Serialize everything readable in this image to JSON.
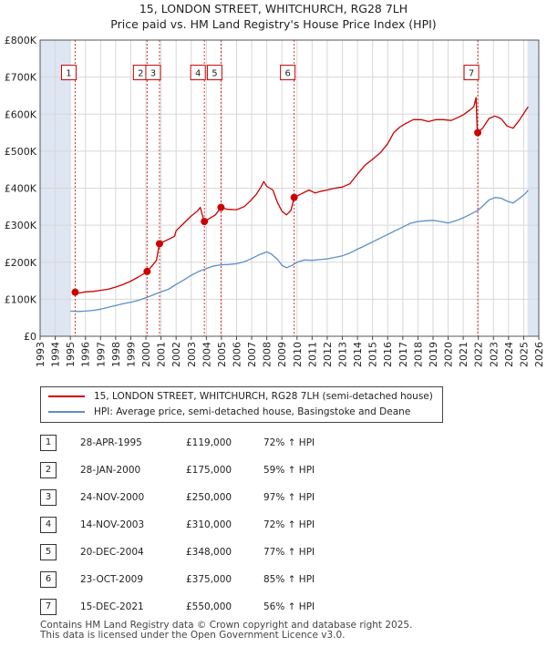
{
  "header": {
    "title": "15, LONDON STREET, WHITCHURCH, RG28 7LH",
    "subtitle": "Price paid vs. HM Land Registry's House Price Index (HPI)"
  },
  "colors": {
    "property": "#cc0000",
    "hpi": "#5b8fc9",
    "shade": "#dde6f2",
    "grid": "#d8d8d8",
    "vline": "#cc0000"
  },
  "chart_data": {
    "type": "line",
    "title": "15, LONDON STREET, WHITCHURCH, RG28 7LH",
    "subtitle": "Price paid vs. HM Land Registry's House Price Index (HPI)",
    "xlabel": "",
    "ylabel": "",
    "xlim": [
      1993,
      2026
    ],
    "ylim": [
      0,
      800000
    ],
    "x_ticks": [
      1993,
      1994,
      1995,
      1996,
      1997,
      1998,
      1999,
      2000,
      2001,
      2002,
      2003,
      2004,
      2005,
      2006,
      2007,
      2008,
      2009,
      2010,
      2011,
      2012,
      2013,
      2014,
      2015,
      2016,
      2017,
      2018,
      2019,
      2020,
      2021,
      2022,
      2023,
      2024,
      2025,
      2026
    ],
    "y_ticks": [
      {
        "value": 0,
        "label": "£0"
      },
      {
        "value": 100000,
        "label": "£100K"
      },
      {
        "value": 200000,
        "label": "£200K"
      },
      {
        "value": 300000,
        "label": "£300K"
      },
      {
        "value": 400000,
        "label": "£400K"
      },
      {
        "value": 500000,
        "label": "£500K"
      },
      {
        "value": 600000,
        "label": "£600K"
      },
      {
        "value": 700000,
        "label": "£700K"
      },
      {
        "value": 800000,
        "label": "£800K"
      }
    ],
    "shaded_ranges": [
      [
        1993,
        1995.0
      ],
      [
        2025.25,
        2026
      ]
    ],
    "series": [
      {
        "name": "15, LONDON STREET, WHITCHURCH, RG28 7LH (semi-detached house)",
        "color": "#cc0000",
        "points": [
          [
            1995.32,
            119000
          ],
          [
            1995.6,
            117000
          ],
          [
            1996.0,
            120000
          ],
          [
            1996.5,
            121000
          ],
          [
            1997.0,
            124000
          ],
          [
            1997.5,
            127000
          ],
          [
            1998.0,
            133000
          ],
          [
            1998.5,
            140000
          ],
          [
            1999.0,
            149000
          ],
          [
            1999.5,
            160000
          ],
          [
            2000.0,
            172000
          ],
          [
            2000.08,
            175000
          ],
          [
            2000.4,
            190000
          ],
          [
            2000.7,
            205000
          ],
          [
            2000.9,
            250000
          ],
          [
            2001.0,
            252000
          ],
          [
            2001.5,
            262000
          ],
          [
            2001.9,
            270000
          ],
          [
            2002.0,
            285000
          ],
          [
            2002.5,
            305000
          ],
          [
            2003.0,
            325000
          ],
          [
            2003.4,
            338000
          ],
          [
            2003.6,
            348000
          ],
          [
            2003.8,
            318000
          ],
          [
            2003.87,
            310000
          ],
          [
            2004.2,
            318000
          ],
          [
            2004.6,
            328000
          ],
          [
            2004.97,
            348000
          ],
          [
            2005.4,
            343000
          ],
          [
            2006.0,
            342000
          ],
          [
            2006.5,
            350000
          ],
          [
            2006.9,
            365000
          ],
          [
            2007.3,
            383000
          ],
          [
            2007.6,
            402000
          ],
          [
            2007.8,
            418000
          ],
          [
            2008.0,
            405000
          ],
          [
            2008.4,
            395000
          ],
          [
            2008.7,
            362000
          ],
          [
            2009.0,
            338000
          ],
          [
            2009.3,
            328000
          ],
          [
            2009.6,
            340000
          ],
          [
            2009.81,
            375000
          ],
          [
            2010.3,
            385000
          ],
          [
            2010.8,
            395000
          ],
          [
            2011.2,
            387000
          ],
          [
            2011.6,
            392000
          ],
          [
            2012.0,
            395000
          ],
          [
            2012.5,
            400000
          ],
          [
            2013.0,
            403000
          ],
          [
            2013.5,
            412000
          ],
          [
            2014.0,
            438000
          ],
          [
            2014.5,
            462000
          ],
          [
            2015.0,
            478000
          ],
          [
            2015.5,
            495000
          ],
          [
            2016.0,
            520000
          ],
          [
            2016.4,
            550000
          ],
          [
            2016.8,
            565000
          ],
          [
            2017.2,
            575000
          ],
          [
            2017.7,
            585000
          ],
          [
            2018.2,
            585000
          ],
          [
            2018.7,
            580000
          ],
          [
            2019.2,
            585000
          ],
          [
            2019.7,
            585000
          ],
          [
            2020.2,
            583000
          ],
          [
            2020.6,
            590000
          ],
          [
            2021.0,
            598000
          ],
          [
            2021.4,
            610000
          ],
          [
            2021.7,
            620000
          ],
          [
            2021.85,
            645000
          ],
          [
            2021.92,
            560000
          ],
          [
            2021.96,
            550000
          ],
          [
            2022.3,
            563000
          ],
          [
            2022.7,
            588000
          ],
          [
            2023.1,
            595000
          ],
          [
            2023.5,
            588000
          ],
          [
            2023.9,
            568000
          ],
          [
            2024.3,
            562000
          ],
          [
            2024.7,
            583000
          ],
          [
            2025.1,
            608000
          ],
          [
            2025.3,
            620000
          ]
        ]
      },
      {
        "name": "HPI: Average price, semi-detached house, Basingstoke and Deane",
        "color": "#5b8fc9",
        "points": [
          [
            1995.0,
            68000
          ],
          [
            1995.5,
            67000
          ],
          [
            1996.0,
            68000
          ],
          [
            1996.5,
            70000
          ],
          [
            1997.0,
            73000
          ],
          [
            1997.5,
            78000
          ],
          [
            1998.0,
            83000
          ],
          [
            1998.5,
            88000
          ],
          [
            1999.0,
            92000
          ],
          [
            1999.5,
            97000
          ],
          [
            2000.0,
            104000
          ],
          [
            2000.5,
            112000
          ],
          [
            2001.0,
            120000
          ],
          [
            2001.5,
            127000
          ],
          [
            2002.0,
            140000
          ],
          [
            2002.5,
            152000
          ],
          [
            2003.0,
            165000
          ],
          [
            2003.5,
            175000
          ],
          [
            2004.0,
            183000
          ],
          [
            2004.5,
            190000
          ],
          [
            2005.0,
            193000
          ],
          [
            2005.5,
            194000
          ],
          [
            2006.0,
            196000
          ],
          [
            2006.5,
            201000
          ],
          [
            2007.0,
            210000
          ],
          [
            2007.5,
            220000
          ],
          [
            2008.0,
            228000
          ],
          [
            2008.3,
            222000
          ],
          [
            2008.7,
            208000
          ],
          [
            2009.0,
            192000
          ],
          [
            2009.3,
            185000
          ],
          [
            2009.7,
            192000
          ],
          [
            2010.0,
            200000
          ],
          [
            2010.5,
            206000
          ],
          [
            2011.0,
            205000
          ],
          [
            2011.5,
            207000
          ],
          [
            2012.0,
            209000
          ],
          [
            2012.5,
            213000
          ],
          [
            2013.0,
            217000
          ],
          [
            2013.5,
            225000
          ],
          [
            2014.0,
            235000
          ],
          [
            2014.5,
            245000
          ],
          [
            2015.0,
            255000
          ],
          [
            2015.5,
            265000
          ],
          [
            2016.0,
            275000
          ],
          [
            2016.5,
            285000
          ],
          [
            2017.0,
            295000
          ],
          [
            2017.5,
            305000
          ],
          [
            2018.0,
            310000
          ],
          [
            2018.5,
            312000
          ],
          [
            2019.0,
            313000
          ],
          [
            2019.5,
            310000
          ],
          [
            2020.0,
            306000
          ],
          [
            2020.5,
            312000
          ],
          [
            2021.0,
            320000
          ],
          [
            2021.5,
            330000
          ],
          [
            2021.96,
            340000
          ],
          [
            2022.3,
            352000
          ],
          [
            2022.7,
            368000
          ],
          [
            2023.1,
            375000
          ],
          [
            2023.5,
            373000
          ],
          [
            2023.9,
            365000
          ],
          [
            2024.3,
            360000
          ],
          [
            2024.7,
            372000
          ],
          [
            2025.1,
            385000
          ],
          [
            2025.3,
            395000
          ]
        ]
      }
    ],
    "sales": [
      {
        "n": "1",
        "x": 1995.32,
        "y": 119000
      },
      {
        "n": "2",
        "x": 2000.08,
        "y": 175000
      },
      {
        "n": "3",
        "x": 2000.9,
        "y": 250000
      },
      {
        "n": "4",
        "x": 2003.87,
        "y": 310000
      },
      {
        "n": "5",
        "x": 2004.97,
        "y": 348000
      },
      {
        "n": "6",
        "x": 2009.81,
        "y": 375000
      },
      {
        "n": "7",
        "x": 2021.96,
        "y": 550000
      }
    ]
  },
  "legend": [
    {
      "label": "15, LONDON STREET, WHITCHURCH, RG28 7LH (semi-detached house)",
      "color": "#cc0000"
    },
    {
      "label": "HPI: Average price, semi-detached house, Basingstoke and Deane",
      "color": "#5b8fc9"
    }
  ],
  "table": [
    {
      "n": "1",
      "date": "28-APR-1995",
      "price": "£119,000",
      "hpi": "72% ↑ HPI"
    },
    {
      "n": "2",
      "date": "28-JAN-2000",
      "price": "£175,000",
      "hpi": "59% ↑ HPI"
    },
    {
      "n": "3",
      "date": "24-NOV-2000",
      "price": "£250,000",
      "hpi": "97% ↑ HPI"
    },
    {
      "n": "4",
      "date": "14-NOV-2003",
      "price": "£310,000",
      "hpi": "72% ↑ HPI"
    },
    {
      "n": "5",
      "date": "20-DEC-2004",
      "price": "£348,000",
      "hpi": "77% ↑ HPI"
    },
    {
      "n": "6",
      "date": "23-OCT-2009",
      "price": "£375,000",
      "hpi": "85% ↑ HPI"
    },
    {
      "n": "7",
      "date": "15-DEC-2021",
      "price": "£550,000",
      "hpi": "56% ↑ HPI"
    }
  ],
  "footer": {
    "line1": "Contains HM Land Registry data © Crown copyright and database right 2025.",
    "line2": "This data is licensed under the Open Government Licence v3.0."
  }
}
